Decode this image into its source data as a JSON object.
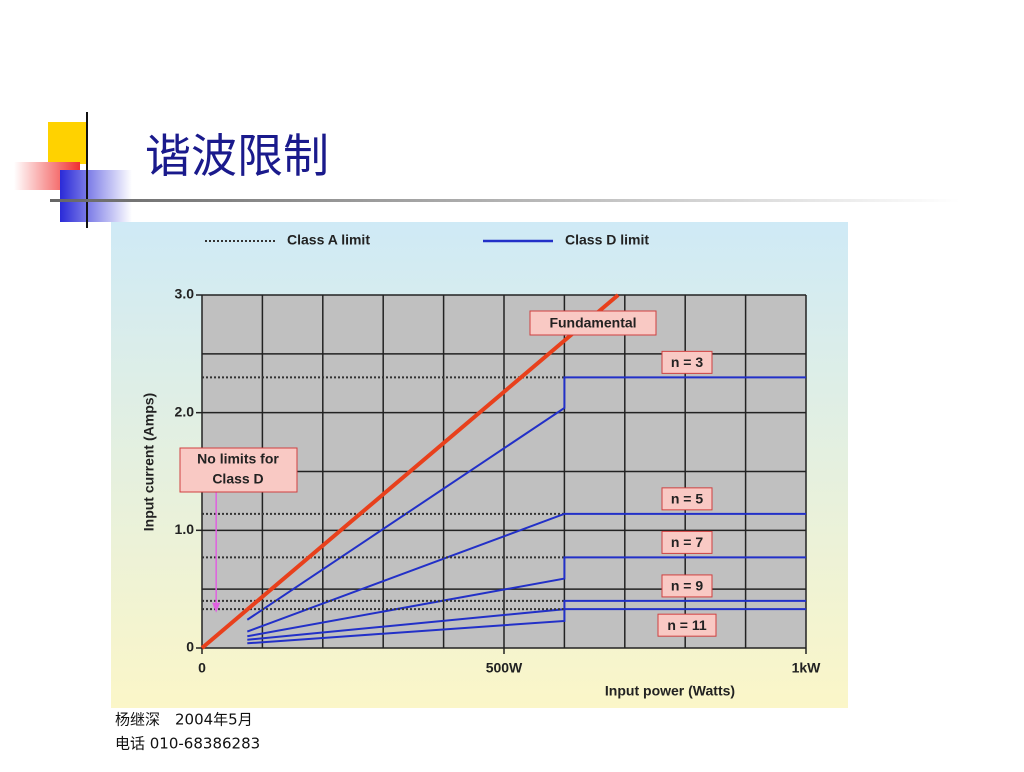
{
  "slide": {
    "title": "谐波限制",
    "footer": [
      "杨继深　2004年5月",
      "电话 010-68386283"
    ]
  },
  "chart_data": {
    "type": "line",
    "x_label": "Input power (Watts)",
    "y_label": "Input current (Amps)",
    "xlim": [
      0,
      1000
    ],
    "ylim": [
      0,
      3.0
    ],
    "xticks": [
      0,
      {
        "value": 500,
        "label": "500W"
      },
      {
        "value": 1000,
        "label": "1kW"
      }
    ],
    "yticks": [
      0,
      {
        "value": 1,
        "label": "1.0"
      },
      {
        "value": 2,
        "label": "2.0"
      },
      {
        "value": 3,
        "label": "3.0"
      }
    ],
    "xgrid": [
      0,
      100,
      200,
      300,
      400,
      500,
      600,
      700,
      800,
      900,
      1000
    ],
    "ygrid": [
      0,
      0.5,
      1,
      1.5,
      2,
      2.5,
      3
    ],
    "legend": [
      {
        "name": "Class A limit",
        "color": "#333333",
        "style": "dotted"
      },
      {
        "name": "Class D limit",
        "color": "#2230c8",
        "style": "solid"
      }
    ],
    "fundamental": {
      "name": "Fundamental",
      "color": "#e8401c",
      "x": [
        0,
        689
      ],
      "values": [
        0,
        3.0
      ]
    },
    "harmonics": [
      {
        "name": "n = 3",
        "class_d": {
          "x": [
            75,
            600,
            600,
            1000
          ],
          "values": [
            0.24,
            2.04,
            2.3,
            2.3
          ]
        },
        "class_a": {
          "x": [
            0,
            600
          ],
          "values": [
            2.3,
            2.3
          ]
        }
      },
      {
        "name": "n = 5",
        "class_d": {
          "x": [
            75,
            600,
            600,
            1000
          ],
          "values": [
            0.14,
            1.14,
            1.14,
            1.14
          ]
        },
        "class_a": {
          "x": [
            0,
            600
          ],
          "values": [
            1.14,
            1.14
          ]
        }
      },
      {
        "name": "n = 7",
        "class_d": {
          "x": [
            75,
            600,
            600,
            1000
          ],
          "values": [
            0.1,
            0.59,
            0.77,
            0.77
          ]
        },
        "class_a": {
          "x": [
            0,
            600
          ],
          "values": [
            0.77,
            0.77
          ]
        }
      },
      {
        "name": "n = 9",
        "class_d": {
          "x": [
            75,
            600,
            600,
            1000
          ],
          "values": [
            0.07,
            0.33,
            0.4,
            0.4
          ]
        },
        "class_a": {
          "x": [
            0,
            600
          ],
          "values": [
            0.4,
            0.4
          ]
        }
      },
      {
        "name": "n = 11",
        "class_d": {
          "x": [
            75,
            600,
            600,
            1000
          ],
          "values": [
            0.04,
            0.23,
            0.33,
            0.33
          ]
        },
        "class_a": {
          "x": [
            0,
            600
          ],
          "values": [
            0.33,
            0.33
          ]
        }
      }
    ],
    "annotation": {
      "lines": [
        "No limits for",
        "Class D"
      ],
      "x": 40,
      "y": 0.3
    }
  }
}
